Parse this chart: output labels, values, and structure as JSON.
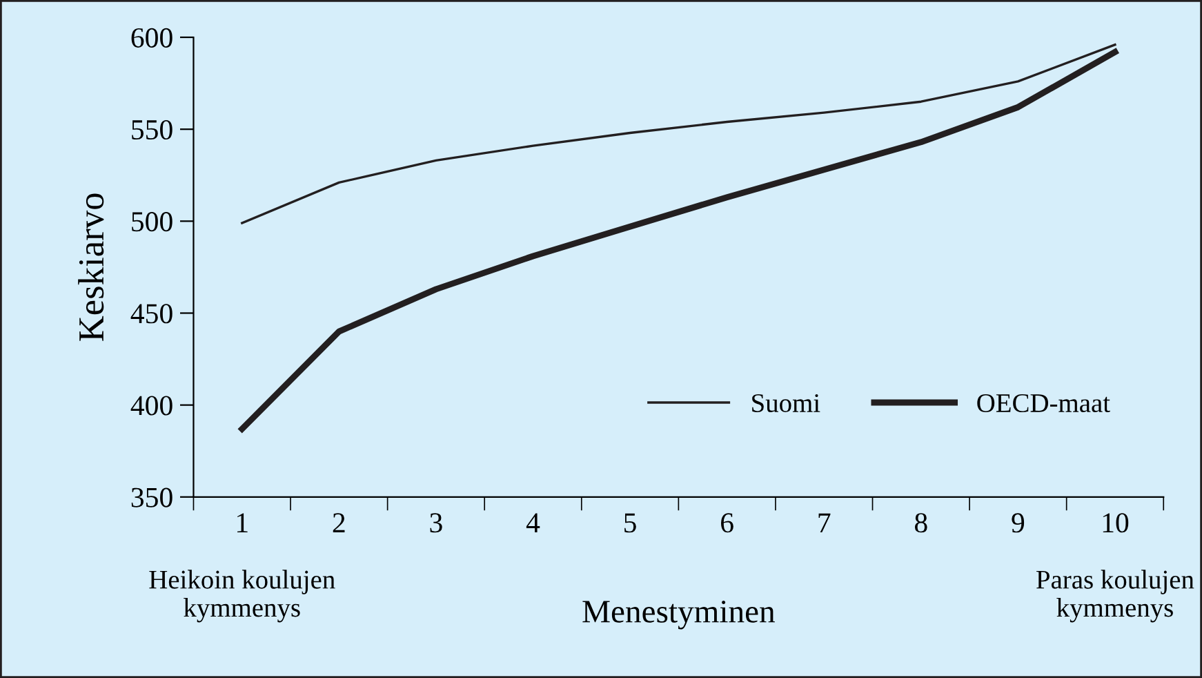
{
  "chart_data": {
    "type": "line",
    "xlabel": "Menestyminen",
    "ylabel": "Keskiarvo",
    "categories": [
      "1",
      "2",
      "3",
      "4",
      "5",
      "6",
      "7",
      "8",
      "9",
      "10"
    ],
    "series": [
      {
        "name": "Suomi",
        "color": "#231f20",
        "values": [
          499,
          521,
          533,
          541,
          548,
          554,
          559,
          565,
          576,
          596
        ]
      },
      {
        "name": "OECD-maat",
        "color": "#231f20",
        "values": [
          387,
          440,
          463,
          481,
          497,
          513,
          528,
          543,
          562,
          592
        ]
      }
    ],
    "ylim": [
      350,
      600
    ],
    "yticks": [
      350,
      400,
      450,
      500,
      550,
      600
    ],
    "annotations": [
      "Heikoin koulujen\nkymmenys",
      "Paras koulujen\nkymmenys"
    ],
    "legend": "bottom right",
    "grid": false,
    "marker": "none",
    "line_style": "solid"
  }
}
